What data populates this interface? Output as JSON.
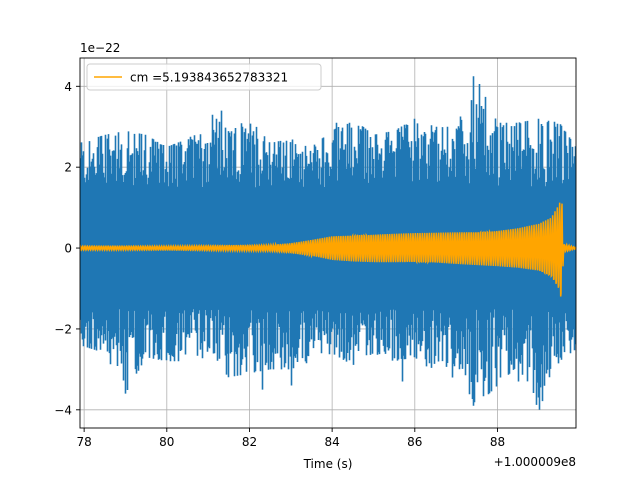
{
  "chart_data": {
    "type": "line",
    "title": "",
    "xlabel": "Time (s)",
    "ylabel": "",
    "xlim": [
      77.9,
      89.9
    ],
    "ylim": [
      -4.45,
      4.7
    ],
    "x_offset_label": "+1.000009e8",
    "y_scale_label": "1e−22",
    "xticks": [
      78,
      80,
      82,
      84,
      86,
      88
    ],
    "xtick_labels": [
      "78",
      "80",
      "82",
      "84",
      "86",
      "88"
    ],
    "yticks": [
      -4,
      -2,
      0,
      2,
      4
    ],
    "ytick_labels": [
      "−4",
      "−2",
      "0",
      "2",
      "4"
    ],
    "grid": true,
    "legend_position": "top-left",
    "series": [
      {
        "label_on_chart": "",
        "color": "#1f77b4",
        "kind": "noisy strain data",
        "x": [
          77.9,
          78.5,
          79.0,
          79.5,
          80.0,
          80.5,
          81.0,
          81.5,
          82.0,
          82.5,
          83.0,
          83.5,
          84.0,
          84.5,
          85.0,
          85.5,
          86.0,
          86.5,
          87.0,
          87.5,
          88.0,
          88.5,
          89.0,
          89.5,
          89.9
        ],
        "upper_envelope": [
          2.6,
          2.8,
          2.9,
          2.8,
          2.5,
          2.7,
          3.4,
          2.9,
          3.2,
          2.6,
          2.7,
          2.5,
          2.9,
          3.2,
          2.8,
          2.9,
          3.2,
          3.0,
          3.0,
          4.2,
          3.1,
          3.1,
          3.2,
          3.1,
          2.5
        ],
        "lower_envelope": [
          -2.4,
          -2.6,
          -3.6,
          -2.7,
          -2.8,
          -2.8,
          -2.7,
          -3.2,
          -3.1,
          -3.0,
          -3.0,
          -2.8,
          -2.6,
          -2.9,
          -2.6,
          -2.8,
          -2.7,
          -3.1,
          -3.1,
          -3.9,
          -3.4,
          -2.9,
          -4.0,
          -2.8,
          -2.5
        ],
        "peak_points": [
          [
            79.0,
            -3.6
          ],
          [
            81.3,
            3.4
          ],
          [
            82.3,
            -3.5
          ],
          [
            83.0,
            -3.4
          ],
          [
            84.1,
            3.1
          ],
          [
            85.7,
            -3.3
          ],
          [
            86.9,
            -3.2
          ],
          [
            87.4,
            4.25
          ],
          [
            87.4,
            -3.9
          ],
          [
            88.5,
            -3.3
          ],
          [
            89.0,
            -4.0
          ],
          [
            89.6,
            2.9
          ]
        ]
      },
      {
        "name": "cm =5.193843652783321",
        "color": "#ffa500",
        "kind": "chirp waveform",
        "x": [
          77.9,
          79.0,
          80.0,
          81.0,
          82.0,
          82.5,
          83.0,
          83.5,
          84.0,
          84.5,
          85.0,
          85.5,
          86.0,
          86.5,
          87.0,
          87.5,
          88.0,
          88.5,
          89.0,
          89.3,
          89.5,
          89.55,
          89.6,
          89.9
        ],
        "amplitude": [
          0.05,
          0.05,
          0.05,
          0.06,
          0.07,
          0.08,
          0.12,
          0.2,
          0.3,
          0.33,
          0.35,
          0.36,
          0.37,
          0.38,
          0.4,
          0.42,
          0.45,
          0.5,
          0.6,
          0.75,
          1.1,
          1.4,
          0.1,
          0.02
        ]
      }
    ]
  }
}
